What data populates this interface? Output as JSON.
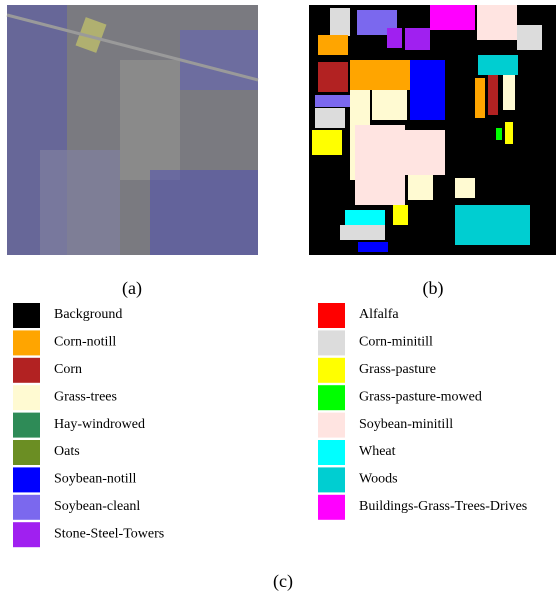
{
  "panels": [
    {
      "label": "(a)"
    },
    {
      "label": "(b)"
    }
  ],
  "caption": "(c)",
  "legend": {
    "left": [
      {
        "name": "Background",
        "color": "#000000"
      },
      {
        "name": "Corn-notill",
        "color": "#ffa500"
      },
      {
        "name": "Corn",
        "color": "#b22222"
      },
      {
        "name": "Grass-trees",
        "color": "#fffad2"
      },
      {
        "name": "Hay-windrowed",
        "color": "#2e8b57"
      },
      {
        "name": "Oats",
        "color": "#6b8e23"
      },
      {
        "name": "Soybean-notill",
        "color": "#0000ff"
      },
      {
        "name": "Soybean-cleanl",
        "color": "#7b68ee"
      },
      {
        "name": "Stone-Steel-Towers",
        "color": "#a020f0"
      }
    ],
    "right": [
      {
        "name": "Alfalfa",
        "color": "#ff0000"
      },
      {
        "name": "Corn-minitill",
        "color": "#dcdcdc"
      },
      {
        "name": "Grass-pasture",
        "color": "#ffff00"
      },
      {
        "name": "Grass-pasture-mowed",
        "color": "#00ff00"
      },
      {
        "name": "Soybean-minitill",
        "color": "#ffe4e1"
      },
      {
        "name": "Wheat",
        "color": "#00ffff"
      },
      {
        "name": "Woods",
        "color": "#00ced1"
      },
      {
        "name": "Buildings-Grass-Trees-Drives",
        "color": "#ff00ff"
      }
    ]
  }
}
